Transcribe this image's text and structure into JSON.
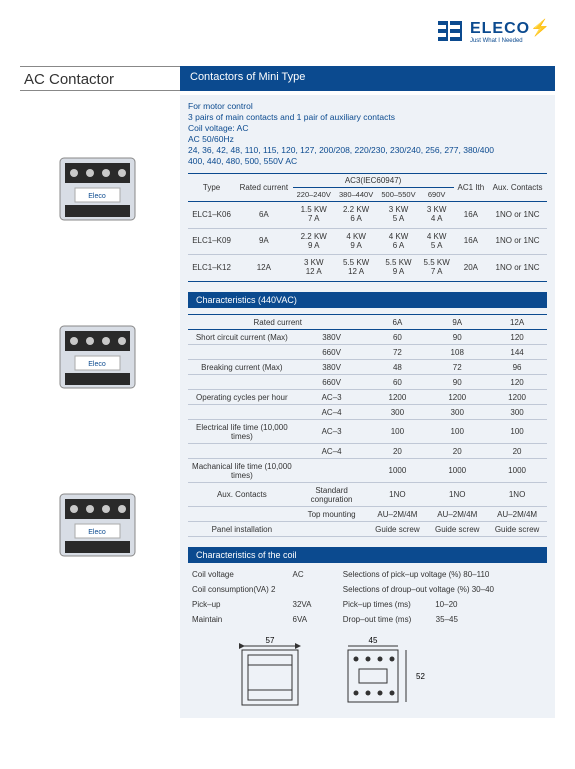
{
  "brand": {
    "name": "ELECO",
    "tagline": "Just What I Needed"
  },
  "page_title": "AC Contactor",
  "subtitle": "Contactors of Mini Type",
  "intro": [
    "For motor control",
    "3 pairs of main contacts and 1 pair of auxiliary contacts",
    "Coil voltage: AC",
    "AC 50/60Hz",
    "24, 36, 42, 48, 110, 115, 120, 127, 200/208, 220/230, 230/240, 256, 277, 380/400",
    "400, 440, 480, 500, 550V AC"
  ],
  "table1": {
    "group_header": "AC3(IEC60947)",
    "cols": [
      "Type",
      "Rated current",
      "220–240V",
      "380–440V",
      "500–550V",
      "690V",
      "AC1 Ith",
      "Aux. Contacts"
    ],
    "rows": [
      {
        "type": "ELC1–K06",
        "rc": "6A",
        "v1": "1.5 KW\n7 A",
        "v2": "2.2 KW\n6 A",
        "v3": "3 KW\n5 A",
        "v4": "3 KW\n4 A",
        "ac1": "16A",
        "aux": "1NO or 1NC"
      },
      {
        "type": "ELC1–K09",
        "rc": "9A",
        "v1": "2.2 KW\n9 A",
        "v2": "4 KW\n9 A",
        "v3": "4 KW\n6 A",
        "v4": "4 KW\n5 A",
        "ac1": "16A",
        "aux": "1NO or 1NC"
      },
      {
        "type": "ELC1–K12",
        "rc": "12A",
        "v1": "3 KW\n12 A",
        "v2": "5.5 KW\n12 A",
        "v3": "5.5 KW\n9 A",
        "v4": "5.5 KW\n7 A",
        "ac1": "20A",
        "aux": "1NO or 1NC"
      }
    ]
  },
  "char_title": "Characteristics (440VAC)",
  "table2": {
    "header": [
      "Rated current",
      "",
      "6A",
      "9A",
      "12A"
    ],
    "rows": [
      [
        "Short circuit current (Max)",
        "380V",
        "60",
        "90",
        "120"
      ],
      [
        "",
        "660V",
        "72",
        "108",
        "144"
      ],
      [
        "Breaking current (Max)",
        "380V",
        "48",
        "72",
        "96"
      ],
      [
        "",
        "660V",
        "60",
        "90",
        "120"
      ],
      [
        "Operating cycles per hour",
        "AC–3",
        "1200",
        "1200",
        "1200"
      ],
      [
        "",
        "AC–4",
        "300",
        "300",
        "300"
      ],
      [
        "Electrical life time (10,000 times)",
        "AC–3",
        "100",
        "100",
        "100"
      ],
      [
        "",
        "AC–4",
        "20",
        "20",
        "20"
      ],
      [
        "Machanical life time (10,000 times)",
        "",
        "1000",
        "1000",
        "1000"
      ],
      [
        "Aux. Contacts",
        "Standard conguration",
        "1NO",
        "1NO",
        "1NO"
      ],
      [
        "",
        "Top mounting",
        "AU–2M/4M",
        "AU–2M/4M",
        "AU–2M/4M"
      ],
      [
        "Panel installation",
        "",
        "Guide screw",
        "Guide screw",
        "Guide screw"
      ]
    ]
  },
  "coil_title": "Characteristics of the coil",
  "table3": {
    "rows": [
      [
        "Coil voltage",
        "AC",
        "Selections of pick–up voltage (%) 80–110"
      ],
      [
        "Coil consumption(VA) 2",
        "",
        "Selections of droup–out voltage (%) 30–40"
      ],
      [
        "Pick–up",
        "32VA",
        "Pick–up times (ms)           10–20"
      ],
      [
        "Maintain",
        "6VA",
        "Drop–out time (ms)           35–45"
      ]
    ]
  },
  "diagram": {
    "w1": "57",
    "w2": "45",
    "h": "52"
  },
  "colors": {
    "brand_blue": "#0b4a8f",
    "panel_bg": "#eef2f7"
  }
}
